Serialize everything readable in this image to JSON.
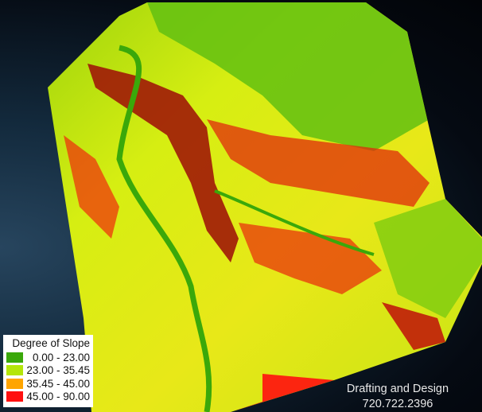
{
  "legend": {
    "title": "Degree of Slope",
    "classes": [
      {
        "range": "0.00 - 23.00",
        "color": "#3aa80a"
      },
      {
        "range": "23.00 - 35.45",
        "color": "#b4e60a"
      },
      {
        "range": "35.45 - 45.00",
        "color": "#ffa500"
      },
      {
        "range": "45.00 - 90.00",
        "color": "#ff1010"
      }
    ]
  },
  "credit": {
    "line1": "Drafting and Design",
    "line2": "720.722.2396"
  }
}
